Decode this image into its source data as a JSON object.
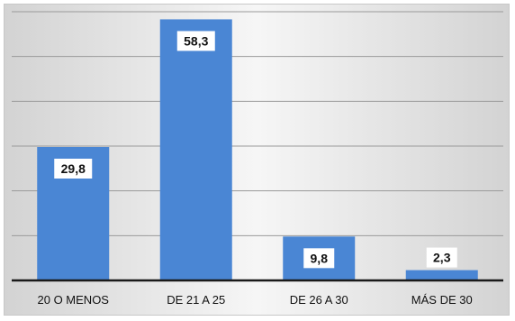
{
  "chart_data": {
    "type": "bar",
    "categories": [
      "20 O MENOS",
      "DE 21 A 25",
      "DE 26 A 30",
      "MÁS DE 30"
    ],
    "values": [
      29.8,
      58.3,
      9.8,
      2.3
    ],
    "value_labels": [
      "29,8",
      "58,3",
      "9,8",
      "2,3"
    ],
    "ylim": [
      0,
      60
    ],
    "grid": true,
    "y_tick_labels_shown": false,
    "colors": {
      "bar": "#4a86d4",
      "axis": "#1a1a1a",
      "grid": "#9a9a9a"
    }
  }
}
